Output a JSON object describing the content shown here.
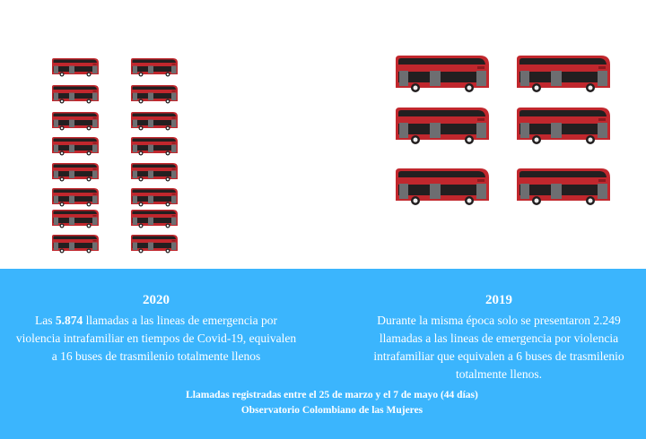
{
  "pictogram": {
    "icon": "bus-icon",
    "bus_color": "#c1272d",
    "count_2020": 16,
    "count_2019": 6
  },
  "left": {
    "year": "2020",
    "text_before": "Las ",
    "highlight": "5.874",
    "text_after": " llamadas a las lineas de emergencia por violencia intrafamiliar en tiempos de Covid-19, equivalen a 16 buses de trasmilenio totalmente llenos"
  },
  "right": {
    "year": "2019",
    "text": "Durante la misma época solo se presentaron 2.249 llamadas a las lineas de emergencia por violencia intrafamiliar que equivalen a 6 buses de trasmilenio totalmente llenos."
  },
  "footer": {
    "line1": "Llamadas registradas entre el 25 de marzo y el  7 de mayo (44 días)",
    "line2": "Observatorio Colombiano de las Mujeres"
  },
  "colors": {
    "panel": "#3bb5fd",
    "text": "#ffffff"
  }
}
